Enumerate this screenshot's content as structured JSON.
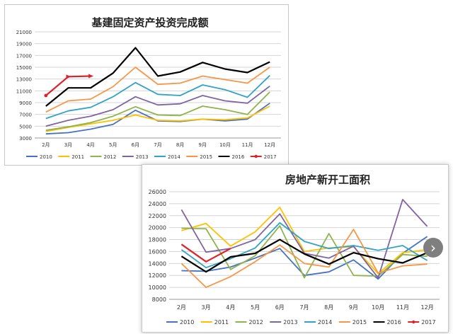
{
  "chart_data": [
    {
      "type": "line",
      "title": "基建固定资产投资完成额",
      "categories": [
        "2月",
        "3月",
        "4月",
        "5月",
        "6月",
        "7月",
        "8月",
        "9月",
        "10月",
        "11月",
        "12月"
      ],
      "ylim": [
        3000,
        21000
      ],
      "yticks": [
        3000,
        5000,
        7000,
        9000,
        11000,
        13000,
        15000,
        17000,
        19000,
        21000
      ],
      "grid": true,
      "legend_position": "bottom",
      "series": [
        {
          "name": "2010",
          "color": "#4472c4",
          "values": [
            3700,
            3900,
            4500,
            5300,
            7700,
            5900,
            5800,
            6200,
            5900,
            6200,
            8900
          ]
        },
        {
          "name": "2011",
          "color": "#ffc000",
          "values": [
            4100,
            4800,
            5400,
            6000,
            6900,
            6000,
            5900,
            6200,
            6100,
            6400,
            8400
          ]
        },
        {
          "name": "2012",
          "color": "#8eb44c",
          "values": [
            4300,
            4900,
            5600,
            6700,
            8300,
            6900,
            6800,
            8400,
            7800,
            7000,
            10800
          ]
        },
        {
          "name": "2013",
          "color": "#8064a2",
          "values": [
            5000,
            6000,
            6700,
            7800,
            10000,
            8600,
            8800,
            10200,
            9300,
            8900,
            11800
          ]
        },
        {
          "name": "2014",
          "color": "#31a3c4",
          "values": [
            6300,
            7600,
            8200,
            10000,
            12400,
            10400,
            10200,
            12000,
            11200,
            9900,
            13600
          ]
        },
        {
          "name": "2015",
          "color": "#f79646",
          "values": [
            7400,
            9300,
            9600,
            11700,
            15000,
            12100,
            12300,
            13500,
            12900,
            12300,
            15000
          ]
        },
        {
          "name": "2016",
          "color": "#000000",
          "values": [
            8400,
            11500,
            11500,
            14000,
            18300,
            13500,
            14200,
            15800,
            14700,
            14100,
            15900
          ]
        },
        {
          "name": "2017",
          "color": "#e0202a",
          "values": [
            10200,
            13400,
            13500,
            null,
            null,
            null,
            null,
            null,
            null,
            null,
            null
          ]
        }
      ]
    },
    {
      "type": "line",
      "title": "房地产新开工面积",
      "categories": [
        "2月",
        "3月",
        "4月",
        "5月",
        "6月",
        "7月",
        "8月",
        "9月",
        "10月",
        "11月",
        "12月"
      ],
      "ylim": [
        8000,
        26000
      ],
      "yticks": [
        8000,
        10000,
        12000,
        14000,
        16000,
        18000,
        20000,
        22000,
        24000,
        26000
      ],
      "grid": true,
      "legend_position": "bottom",
      "series": [
        {
          "name": "2010",
          "color": "#4472c4",
          "values": [
            12800,
            12700,
            13400,
            14900,
            16500,
            12000,
            12600,
            14600,
            11400,
            15700,
            18500
          ]
        },
        {
          "name": "2011",
          "color": "#ffc000",
          "values": [
            19500,
            20700,
            16900,
            19300,
            23400,
            16000,
            16600,
            16800,
            12300,
            15800,
            16300
          ]
        },
        {
          "name": "2012",
          "color": "#8eb44c",
          "values": [
            19900,
            19800,
            13000,
            15300,
            20300,
            11600,
            19000,
            12000,
            11900,
            15500,
            15200
          ]
        },
        {
          "name": "2013",
          "color": "#8064a2",
          "values": [
            23000,
            15900,
            16500,
            18000,
            22300,
            15700,
            14900,
            16900,
            11600,
            24700,
            20200
          ]
        },
        {
          "name": "2014",
          "color": "#31a3c4",
          "values": [
            16300,
            13300,
            14800,
            16600,
            20800,
            17700,
            16500,
            17000,
            16200,
            17000,
            14500
          ]
        },
        {
          "name": "2015",
          "color": "#f79646",
          "values": [
            14000,
            10000,
            11800,
            14300,
            17100,
            14000,
            13400,
            19700,
            12400,
            13600,
            13900
          ]
        },
        {
          "name": "2016",
          "color": "#000000",
          "values": [
            15200,
            12600,
            15100,
            15700,
            18000,
            15600,
            13900,
            15800,
            14800,
            14100,
            15800
          ]
        },
        {
          "name": "2017",
          "color": "#e0202a",
          "values": [
            17200,
            14300,
            16500,
            null,
            null,
            null,
            null,
            null,
            null,
            null,
            null
          ]
        }
      ]
    }
  ],
  "nav": {
    "next_glyph": "›"
  }
}
